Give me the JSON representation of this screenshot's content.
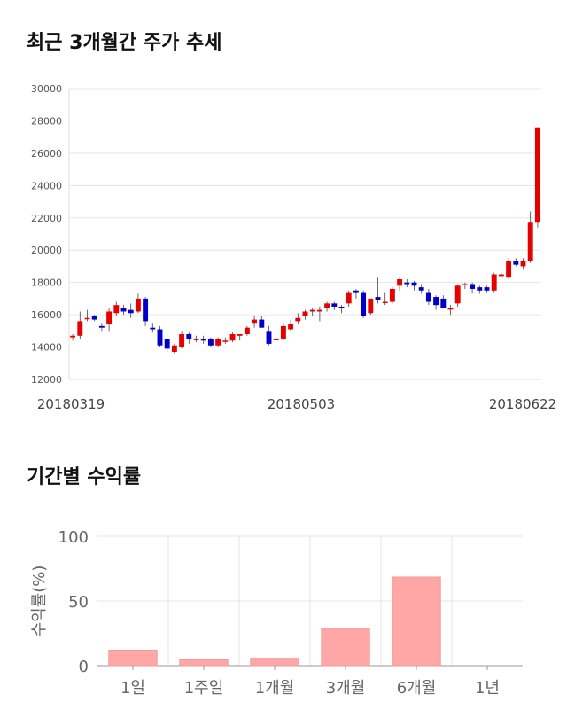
{
  "titles": {
    "price_trend": "최근 3개월간 주가 추세",
    "returns": "기간별 수익률"
  },
  "colors": {
    "up": "#e60000",
    "down": "#0000cc",
    "bar": "#ffa7a7",
    "bar_edge": "#e99",
    "grid": "#e6e6e6"
  },
  "chart_data": [
    {
      "type": "candlestick",
      "title": "최근 3개월간 주가 추세",
      "ylim": [
        12000,
        30000
      ],
      "yticks": [
        12000,
        14000,
        16000,
        18000,
        20000,
        22000,
        24000,
        26000,
        28000,
        30000
      ],
      "x_tick_labels": [
        "20180319",
        "20180503",
        "20180622"
      ],
      "grid": true,
      "candles": [
        [
          14600,
          14800,
          14400,
          14700
        ],
        [
          14700,
          16200,
          14500,
          15600
        ],
        [
          15800,
          16300,
          15600,
          15800
        ],
        [
          15900,
          16000,
          15600,
          15700
        ],
        [
          15300,
          15500,
          15000,
          15200
        ],
        [
          15400,
          16400,
          15000,
          16200
        ],
        [
          16100,
          16800,
          15900,
          16600
        ],
        [
          16400,
          16600,
          16000,
          16200
        ],
        [
          16300,
          16700,
          15800,
          16100
        ],
        [
          16200,
          17300,
          16100,
          17000
        ],
        [
          17000,
          17100,
          15300,
          15600
        ],
        [
          15200,
          15500,
          14900,
          15100
        ],
        [
          15100,
          15300,
          14000,
          14100
        ],
        [
          14500,
          14600,
          13700,
          13900
        ],
        [
          13700,
          14200,
          13600,
          14100
        ],
        [
          14000,
          15000,
          13900,
          14800
        ],
        [
          14800,
          14900,
          14200,
          14500
        ],
        [
          14500,
          14700,
          14300,
          14500
        ],
        [
          14500,
          14700,
          14200,
          14400
        ],
        [
          14500,
          14600,
          14000,
          14100
        ],
        [
          14100,
          14600,
          14000,
          14500
        ],
        [
          14400,
          14600,
          14200,
          14400
        ],
        [
          14400,
          14900,
          14300,
          14800
        ],
        [
          14700,
          14800,
          14400,
          14800
        ],
        [
          14800,
          15300,
          14700,
          15200
        ],
        [
          15500,
          15900,
          15200,
          15700
        ],
        [
          15700,
          15900,
          15200,
          15200
        ],
        [
          15000,
          15300,
          14100,
          14200
        ],
        [
          14500,
          14600,
          14300,
          14500
        ],
        [
          14500,
          15500,
          14400,
          15300
        ],
        [
          15100,
          15700,
          15000,
          15400
        ],
        [
          15600,
          16100,
          15400,
          15800
        ],
        [
          15900,
          16300,
          15700,
          16200
        ],
        [
          16200,
          16400,
          15900,
          16300
        ],
        [
          16200,
          16500,
          15600,
          16300
        ],
        [
          16400,
          16800,
          16200,
          16700
        ],
        [
          16700,
          16800,
          16300,
          16500
        ],
        [
          16500,
          16600,
          16100,
          16400
        ],
        [
          16700,
          17500,
          16500,
          17400
        ],
        [
          17500,
          17600,
          17000,
          17400
        ],
        [
          17400,
          17500,
          15800,
          15900
        ],
        [
          16100,
          16900,
          16000,
          17000
        ],
        [
          17100,
          18300,
          16700,
          16900
        ],
        [
          16800,
          17400,
          16600,
          16800
        ],
        [
          16800,
          17700,
          16700,
          17600
        ],
        [
          17800,
          18300,
          17500,
          18200
        ],
        [
          18000,
          18200,
          17700,
          17900
        ],
        [
          18000,
          18100,
          17500,
          17800
        ],
        [
          17700,
          17900,
          17300,
          17500
        ],
        [
          17400,
          17600,
          16600,
          16800
        ],
        [
          17100,
          17200,
          16300,
          16600
        ],
        [
          17000,
          17200,
          16400,
          16400
        ],
        [
          16400,
          16600,
          16000,
          16400
        ],
        [
          16700,
          17900,
          16500,
          17800
        ],
        [
          17900,
          18000,
          17600,
          17900
        ],
        [
          17900,
          18000,
          17300,
          17600
        ],
        [
          17700,
          17800,
          17300,
          17500
        ],
        [
          17700,
          17800,
          17400,
          17500
        ],
        [
          17500,
          18600,
          17400,
          18500
        ],
        [
          18400,
          18600,
          18300,
          18500
        ],
        [
          18300,
          19500,
          18200,
          19300
        ],
        [
          19300,
          19500,
          19000,
          19100
        ],
        [
          19000,
          19500,
          18800,
          19300
        ],
        [
          19300,
          22400,
          19200,
          21700
        ],
        [
          21700,
          27600,
          21400,
          27600
        ]
      ]
    },
    {
      "type": "bar",
      "title": "기간별 수익률",
      "ylabel": "수익률(%)",
      "ylim": [
        0,
        100
      ],
      "yticks": [
        0,
        50,
        100
      ],
      "categories": [
        "1일",
        "1주일",
        "1개월",
        "3개월",
        "6개월",
        "1년"
      ],
      "values": [
        12.0,
        4.5,
        5.7,
        29.0,
        68.5,
        0
      ],
      "grid": true
    }
  ]
}
